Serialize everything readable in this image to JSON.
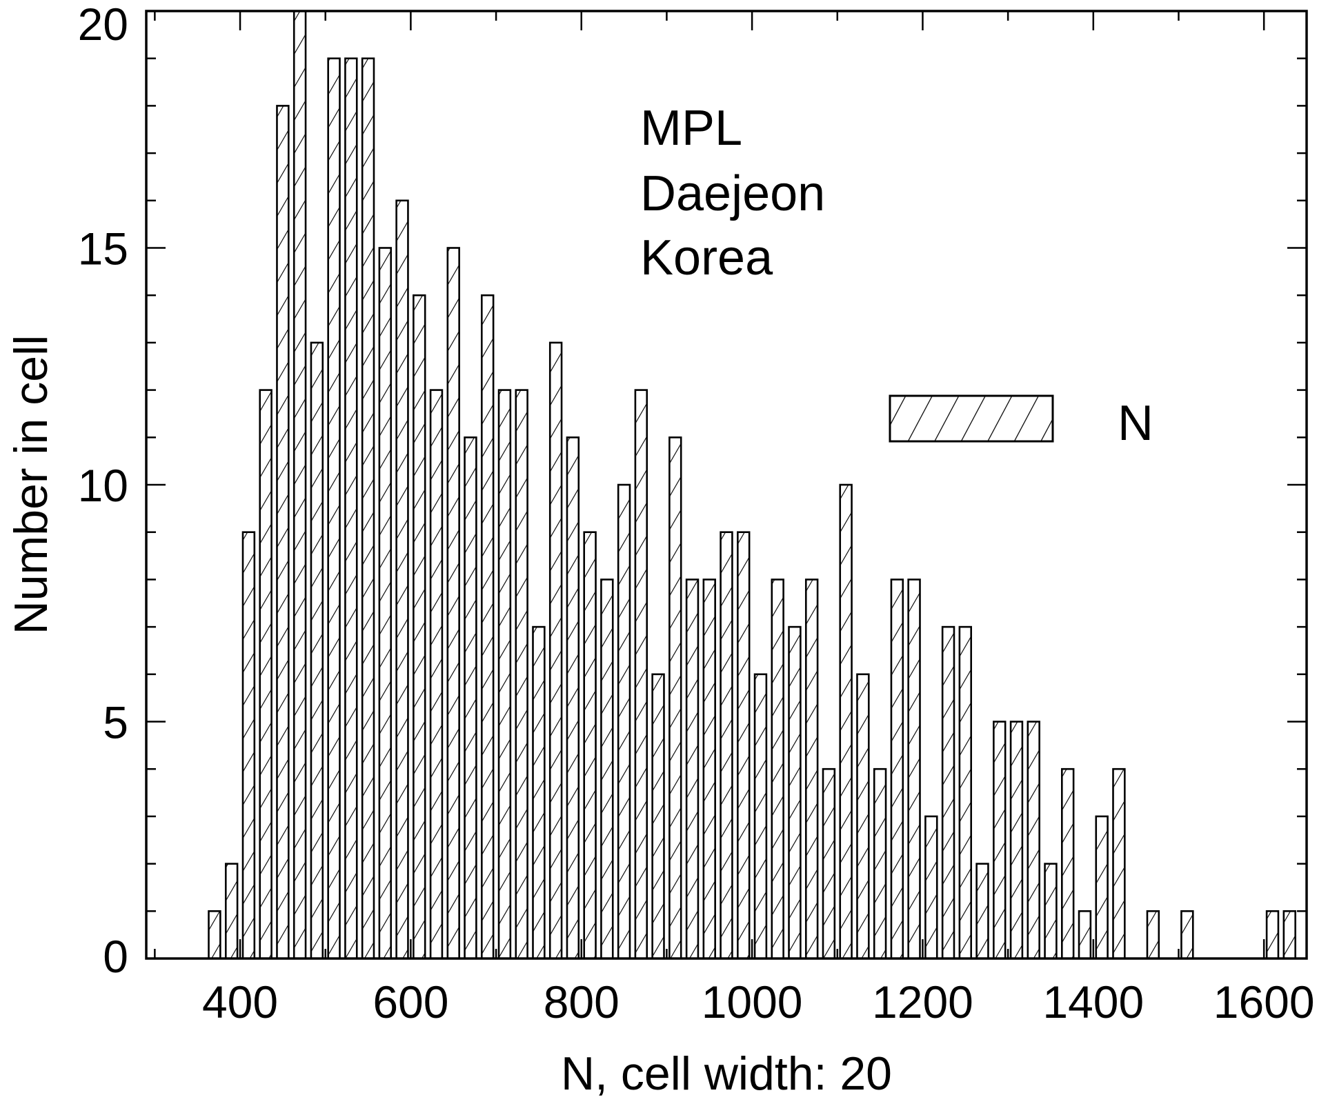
{
  "chart_data": {
    "type": "bar",
    "subtype": "histogram",
    "title": "",
    "xlabel": "N, cell width: 20",
    "ylabel": "Number in cell",
    "xlim": [
      290,
      1650
    ],
    "ylim": [
      0,
      20
    ],
    "cell_width": 20,
    "x": [
      370,
      390,
      410,
      430,
      450,
      470,
      490,
      510,
      530,
      550,
      570,
      590,
      610,
      630,
      650,
      670,
      690,
      710,
      730,
      750,
      770,
      790,
      810,
      830,
      850,
      870,
      890,
      910,
      930,
      950,
      970,
      990,
      1010,
      1030,
      1050,
      1070,
      1090,
      1110,
      1130,
      1150,
      1170,
      1190,
      1210,
      1230,
      1250,
      1270,
      1290,
      1310,
      1330,
      1350,
      1370,
      1390,
      1410,
      1430,
      1450,
      1470,
      1490,
      1510,
      1530,
      1550,
      1570,
      1590,
      1610,
      1630
    ],
    "values": [
      1,
      2,
      9,
      12,
      18,
      20,
      13,
      19,
      19,
      19,
      15,
      16,
      14,
      12,
      15,
      11,
      14,
      12,
      12,
      7,
      13,
      11,
      9,
      8,
      10,
      12,
      6,
      11,
      8,
      8,
      9,
      9,
      6,
      8,
      7,
      8,
      4,
      10,
      6,
      4,
      8,
      8,
      3,
      7,
      7,
      2,
      5,
      5,
      5,
      2,
      4,
      1,
      3,
      4,
      0,
      1,
      0,
      1,
      0,
      0,
      0,
      0,
      1,
      1
    ],
    "xticks": [
      400,
      600,
      800,
      1000,
      1200,
      1400,
      1600
    ],
    "xtick_labels": [
      "400",
      "600",
      "800",
      "1000",
      "1200",
      "1400",
      "1600"
    ],
    "yticks": [
      0,
      5,
      10,
      15,
      20
    ],
    "ytick_labels": [
      "0",
      "5",
      "10",
      "15",
      "20"
    ],
    "annotations": [
      "MPL",
      "Daejeon",
      "Korea"
    ],
    "legend": {
      "entries": [
        "N"
      ],
      "placement": "right"
    },
    "grid": false
  }
}
